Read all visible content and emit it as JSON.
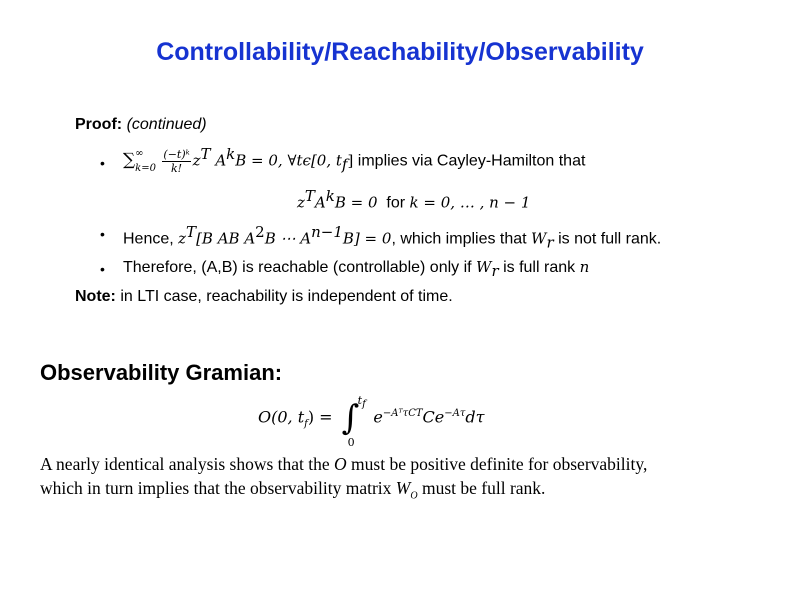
{
  "title": "Controllability/Reachability/Observability",
  "proof": {
    "label": "Proof:",
    "continued": "(continued)"
  },
  "bullet_char": "•",
  "bullet1": {
    "sum": "∑",
    "sum_sup": "∞",
    "sum_sub": "k=0",
    "frac_num": "(−t)ᵏ",
    "frac_den": "k!",
    "expr": "z",
    "expr_T": "T",
    "expr_A": " A",
    "expr_k": "k",
    "expr_rest": "B = 0, ∀tϵ[0, t",
    "expr_f": "f",
    "expr_close": "]",
    "text": " implies via Cayley-Hamilton that"
  },
  "bullet1_line2": {
    "z": "z",
    "T": "T",
    "A": "A",
    "k": "k",
    "eq": "B = 0",
    "for": "  for ",
    "range": "k = 0, … , n − 1"
  },
  "bullet2": {
    "hence": "Hence, ",
    "z": "z",
    "T": "T",
    "matrix": "[B AB A",
    "sq": "2",
    "mid": "B ⋯ A",
    "pow": "n−1",
    "end": "B] = 0",
    "text": ", which implies that ",
    "W": "W",
    "r": "r",
    "text2": " is not full rank."
  },
  "bullet3": {
    "text": "Therefore, (A,B) is reachable (controllable) only if ",
    "W": "W",
    "r": "r",
    "text2": " is full rank ",
    "n": "n"
  },
  "note": {
    "label": "Note:",
    "text": " in LTI case, reachability is independent of time."
  },
  "gramian": {
    "heading": "Observability Gramian:",
    "lhs": "O(0, t",
    "lhs_f": "f",
    "lhs_close": ") =",
    "int_upper": "t",
    "int_upper_f": "f",
    "int_lower": "0",
    "integral": "∫",
    "e1": "e",
    "e1_exp": "−AᵀτC",
    "ct": "T",
    "c": "Ce",
    "e2_exp": "−Aτ",
    "dtau": "dτ"
  },
  "paragraph": {
    "line1_a": "A nearly identical analysis shows that the ",
    "line1_O": "O",
    "line1_b": " must be positive definite for observability,",
    "line2_a": "which in turn implies that the observability matrix ",
    "line2_W": "W",
    "line2_sub": "O",
    "line2_b": " must be full rank."
  }
}
